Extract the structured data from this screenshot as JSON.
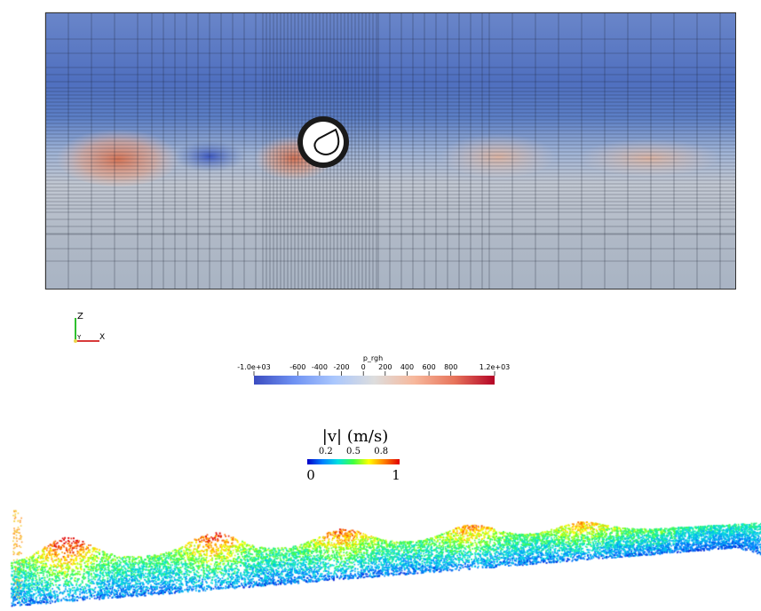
{
  "mesh_panel": {
    "field": "p_rgh",
    "colors": {
      "low": "#3b4cc0",
      "mid": "#dddddd",
      "high": "#b40426",
      "water_upper": "#6a86c9",
      "water_lower": "#a9b4c4"
    }
  },
  "axes_triad": {
    "z_label": "Z",
    "y_label": "Y",
    "x_label": "X"
  },
  "prgh_colorbar": {
    "title": "p_rgh",
    "min_label": "-1.0e+03",
    "max_label": "1.2e+03",
    "range": [
      -1000,
      1200
    ],
    "ticks": [
      {
        "value": -600,
        "label": "-600"
      },
      {
        "value": -400,
        "label": "-400"
      },
      {
        "value": -200,
        "label": "-200"
      },
      {
        "value": 0,
        "label": "0"
      },
      {
        "value": 200,
        "label": "200"
      },
      {
        "value": 400,
        "label": "400"
      },
      {
        "value": 600,
        "label": "600"
      },
      {
        "value": 800,
        "label": "800"
      }
    ],
    "colormap": [
      "#3b4cc0",
      "#6f92f3",
      "#aac7fd",
      "#dddddd",
      "#f7b89c",
      "#e7745b",
      "#b40426"
    ]
  },
  "vmag_colorbar": {
    "title": "|v| (m/s)",
    "min_label": "0",
    "max_label": "1",
    "range": [
      0,
      1
    ],
    "ticks": [
      {
        "value": 0.2,
        "label": "0.2"
      },
      {
        "value": 0.5,
        "label": "0.5"
      },
      {
        "value": 0.8,
        "label": "0.8"
      }
    ],
    "colormap": [
      "#0000c8",
      "#0080ff",
      "#00e0e0",
      "#40ff40",
      "#ffff00",
      "#ff8000",
      "#e00000"
    ]
  },
  "particle_panel": {
    "field": "|v|"
  }
}
